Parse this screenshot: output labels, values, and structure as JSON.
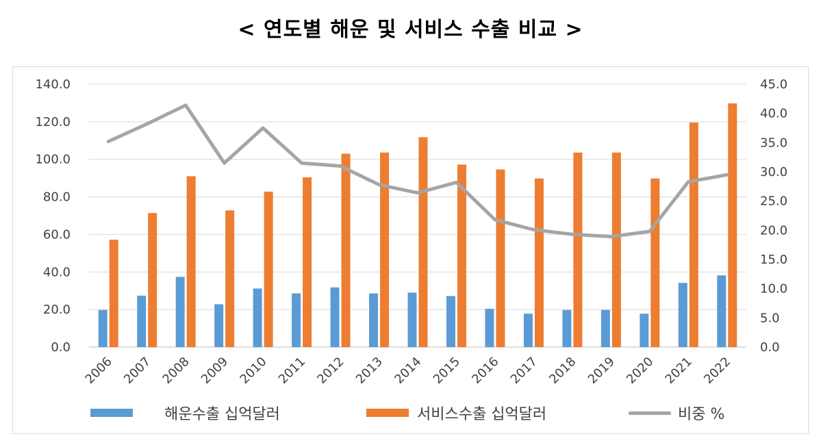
{
  "title": "< 연도별 해운 및 서비스 수출 비교 >",
  "colors": {
    "shipping": "#5B9BD5",
    "services": "#ED7D31",
    "ratio": "#A5A5A5"
  },
  "chart_data": {
    "type": "bar",
    "categories": [
      "2006",
      "2007",
      "2008",
      "2009",
      "2010",
      "2011",
      "2012",
      "2013",
      "2014",
      "2015",
      "2016",
      "2017",
      "2018",
      "2019",
      "2020",
      "2021",
      "2022"
    ],
    "series": [
      {
        "name": "해운수출 십억달러",
        "type": "bar",
        "axis": "left",
        "values": [
          19.8,
          27.4,
          37.4,
          22.8,
          31.2,
          28.6,
          31.8,
          28.6,
          29.0,
          27.2,
          20.4,
          17.8,
          19.8,
          19.8,
          17.8,
          34.2,
          38.2
        ]
      },
      {
        "name": "서비스수출 십억달러",
        "type": "bar",
        "axis": "left",
        "values": [
          57.2,
          71.4,
          91.0,
          72.8,
          82.8,
          90.4,
          103.0,
          103.6,
          111.8,
          97.2,
          94.6,
          89.8,
          103.6,
          103.6,
          89.8,
          119.6,
          129.8
        ]
      },
      {
        "name": "비중 %",
        "type": "line",
        "axis": "right",
        "values": [
          35.2,
          38.2,
          41.4,
          31.5,
          37.5,
          31.5,
          31.0,
          27.8,
          26.4,
          28.2,
          21.8,
          20.1,
          19.3,
          18.9,
          19.8,
          28.3,
          29.5
        ]
      }
    ],
    "y_left": {
      "min": 0,
      "max": 140,
      "step": 20,
      "ticks": [
        "0.0",
        "20.0",
        "40.0",
        "60.0",
        "80.0",
        "100.0",
        "120.0",
        "140.0"
      ]
    },
    "y_right": {
      "min": 0,
      "max": 45,
      "step": 5,
      "ticks": [
        "0.0",
        "5.0",
        "10.0",
        "15.0",
        "20.0",
        "25.0",
        "30.0",
        "35.0",
        "40.0",
        "45.0"
      ]
    },
    "grid": true,
    "legend_position": "bottom"
  }
}
